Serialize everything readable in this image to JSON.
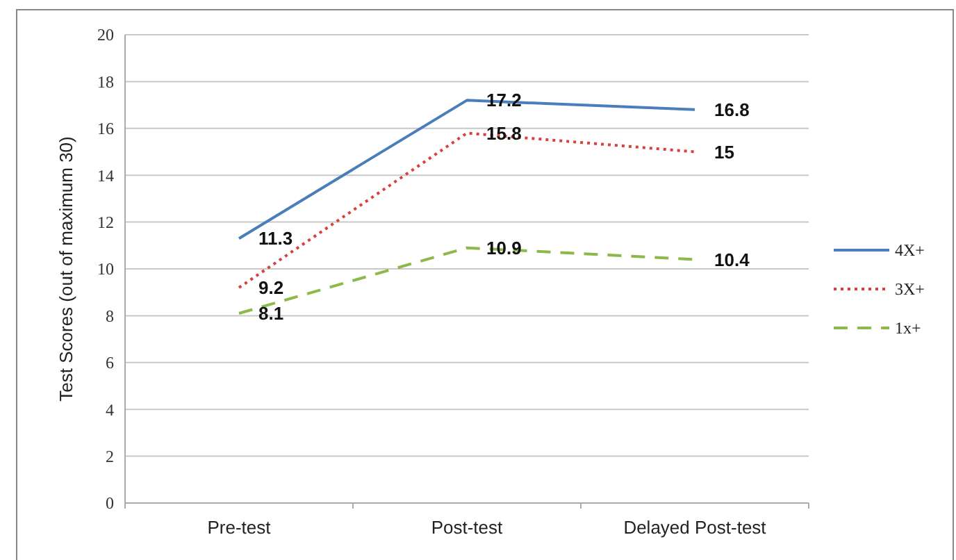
{
  "chart_data": {
    "type": "line",
    "ylabel": "Test Scores (out of maximum 30)",
    "categories": [
      "Pre-test",
      "Post-test",
      "Delayed Post-test"
    ],
    "series": [
      {
        "name": "4X+",
        "color": "#4a7ebb",
        "values": [
          11.3,
          17.2,
          16.8
        ],
        "line_style": "solid"
      },
      {
        "name": "3X+",
        "color": "#d9403c",
        "values": [
          9.2,
          15.8,
          15
        ],
        "line_style": "dotted"
      },
      {
        "name": "1x+",
        "color": "#8db84a",
        "values": [
          8.1,
          10.9,
          10.4
        ],
        "line_style": "dashed"
      }
    ],
    "ylim": [
      0,
      20
    ],
    "yticks": [
      0,
      2,
      4,
      6,
      8,
      10,
      12,
      14,
      16,
      18,
      20
    ],
    "grid": "y",
    "legend": "right",
    "marker": "none",
    "data_labels": true
  }
}
